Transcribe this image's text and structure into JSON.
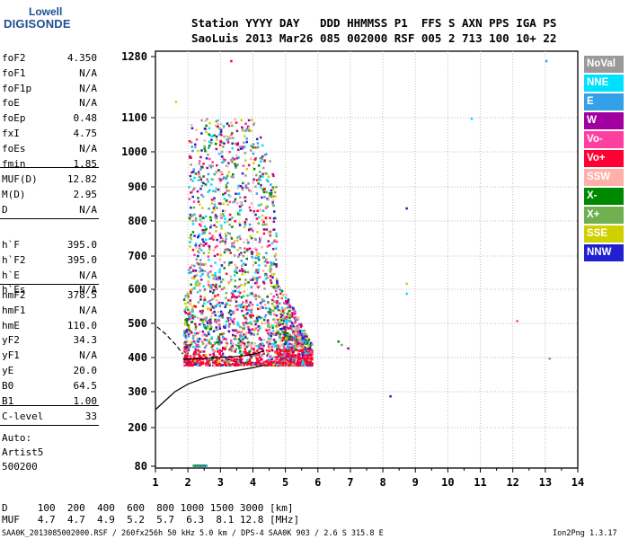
{
  "logo": {
    "line1": "Lowell",
    "line2": "DIGISONDE"
  },
  "header": {
    "labels": "Station YYYY DAY   DDD HHMMSS P1  FFS S AXN PPS IGA PS",
    "values": "SaoLuis 2013 Mar26 085 002000 RSF 005 2 713 100 10+ 22"
  },
  "params": {
    "group1": [
      {
        "name": "foF2",
        "value": "4.350"
      },
      {
        "name": "foF1",
        "value": "N/A"
      },
      {
        "name": "foF1p",
        "value": "N/A"
      },
      {
        "name": "foE",
        "value": "N/A"
      },
      {
        "name": "foEp",
        "value": "0.48"
      },
      {
        "name": "fxI",
        "value": "4.75"
      },
      {
        "name": "foEs",
        "value": "N/A"
      },
      {
        "name": "fmin",
        "value": "1.85"
      }
    ],
    "group2": [
      {
        "name": "MUF(D)",
        "value": "12.82"
      },
      {
        "name": "M(D)",
        "value": "2.95"
      },
      {
        "name": "D",
        "value": "N/A"
      }
    ],
    "group3": [
      {
        "name": "h`F",
        "value": "395.0"
      },
      {
        "name": "h`F2",
        "value": "395.0"
      },
      {
        "name": "h`E",
        "value": "N/A"
      },
      {
        "name": "h`Es",
        "value": "N/A"
      }
    ],
    "group4": [
      {
        "name": "hmF2",
        "value": "378.5"
      },
      {
        "name": "hmF1",
        "value": "N/A"
      },
      {
        "name": "hmE",
        "value": "110.0"
      },
      {
        "name": "yF2",
        "value": "34.3"
      },
      {
        "name": "yF1",
        "value": "N/A"
      },
      {
        "name": "yE",
        "value": "20.0"
      },
      {
        "name": "B0",
        "value": "64.5"
      },
      {
        "name": "B1",
        "value": "1.00"
      }
    ],
    "group5": [
      {
        "name": "C-level",
        "value": "33"
      }
    ],
    "auto_label": "Auto:",
    "artist": "Artist5",
    "code": "500200"
  },
  "legend": [
    {
      "label": "NoVal",
      "color": "#9a9a9a"
    },
    {
      "label": "NNE",
      "color": "#00e0ff"
    },
    {
      "label": "E",
      "color": "#33a0e8"
    },
    {
      "label": "W",
      "color": "#a000a0"
    },
    {
      "label": "Vo-",
      "color": "#ff3fa0"
    },
    {
      "label": "Vo+",
      "color": "#ff0033"
    },
    {
      "label": "SSW",
      "color": "#ffb0a8"
    },
    {
      "label": "X-",
      "color": "#008800"
    },
    {
      "label": "X+",
      "color": "#70b050"
    },
    {
      "label": "SSE",
      "color": "#d0d000"
    },
    {
      "label": "NNW",
      "color": "#2020d0"
    }
  ],
  "chart_data": {
    "type": "scatter",
    "x_ticks": [
      "1",
      "2",
      "3",
      "4",
      "5",
      "6",
      "7",
      "8",
      "9",
      "10",
      "11",
      "12",
      "13",
      "14"
    ],
    "y_ticks": [
      "80",
      "200",
      "300",
      "400",
      "500",
      "600",
      "700",
      "800",
      "900",
      "1000",
      "1100",
      "1280"
    ],
    "xlim": [
      1,
      14
    ],
    "ylim": [
      80,
      1280
    ],
    "grid": "dotted",
    "series": [
      {
        "name": "foF2 trace",
        "kind": "line",
        "x": [
          1.0,
          1.3,
          1.6,
          2.0,
          2.5,
          3.0,
          3.5,
          4.0,
          4.35
        ],
        "y": [
          250,
          275,
          300,
          322,
          340,
          352,
          362,
          370,
          378
        ]
      },
      {
        "name": "virtual height",
        "kind": "line",
        "x": [
          1.85,
          2.2,
          2.6,
          3.0,
          3.4,
          3.8,
          4.1,
          4.35
        ],
        "y": [
          395,
          396,
          398,
          400,
          402,
          406,
          412,
          420
        ]
      },
      {
        "name": "dashed",
        "kind": "dashed",
        "x": [
          1.05,
          1.3,
          1.6,
          1.85
        ],
        "y": [
          490,
          470,
          440,
          410
        ]
      }
    ],
    "scatter_extent": {
      "x_start": 1.85,
      "x_end": 5.8,
      "y_bottom": 380,
      "y_top": 1100
    }
  },
  "bottom_table": {
    "row1": "D     100  200  400  600  800 1000 1500 3000 [km]",
    "row2": "MUF   4.7  4.7  4.9  5.2  5.7  6.3  8.1 12.8 [MHz]"
  },
  "footer": {
    "left": "SAA0K_2013085002000.RSF / 260fx256h 50 kHz 5.0 km / DPS-4 SAA0K 903 / 2.6 S 315.8 E",
    "right": "Ion2Png 1.3.17"
  }
}
